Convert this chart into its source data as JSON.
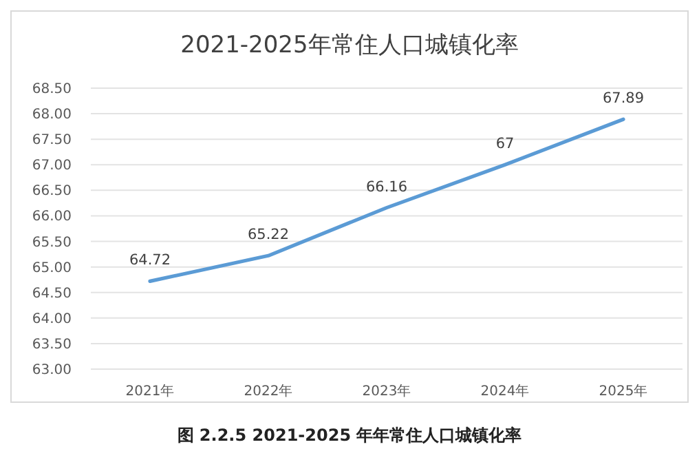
{
  "chart_data": {
    "type": "line",
    "title": "2021-2025年常住人口城镇化率",
    "categories": [
      "2021年",
      "2022年",
      "2023年",
      "2024年",
      "2025年"
    ],
    "values": [
      64.72,
      65.22,
      66.16,
      67,
      67.89
    ],
    "color": "#5b9bd5",
    "ylim": [
      63,
      68.5
    ],
    "yticks": [
      {
        "value": 63,
        "label": "63.00"
      },
      {
        "value": 63.5,
        "label": "63.50"
      },
      {
        "value": 64,
        "label": "64.00"
      },
      {
        "value": 64.5,
        "label": "64.50"
      },
      {
        "value": 65,
        "label": "65.00"
      },
      {
        "value": 65.5,
        "label": "65.50"
      },
      {
        "value": 66,
        "label": "66.00"
      },
      {
        "value": 66.5,
        "label": "66.50"
      },
      {
        "value": 67,
        "label": "67.00"
      },
      {
        "value": 67.5,
        "label": "67.50"
      },
      {
        "value": 68,
        "label": "68.00"
      },
      {
        "value": 68.5,
        "label": "68.50"
      }
    ],
    "grid": "y",
    "data_labels": true,
    "marker": "none",
    "line_style": "solid",
    "annotations": [
      "图 2.2.5    2021-2025 年年常住人口城镇化率"
    ]
  }
}
